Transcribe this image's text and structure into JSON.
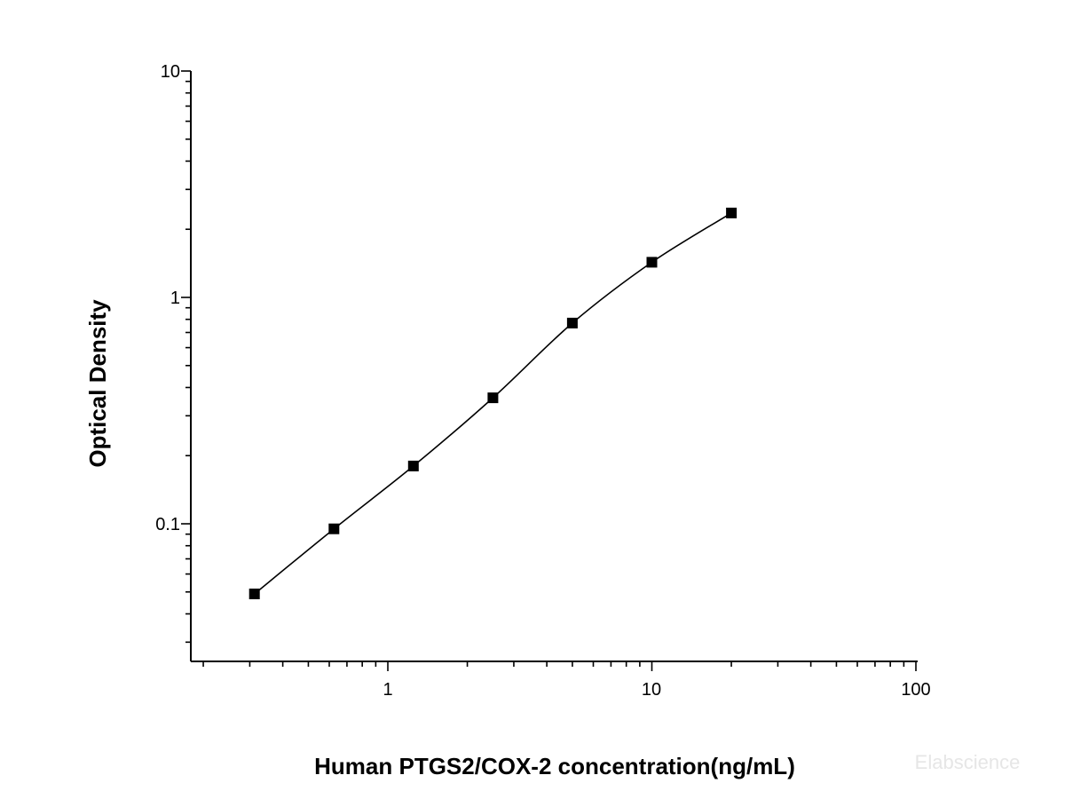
{
  "chart_data": {
    "type": "scatter",
    "xlabel": "Human PTGS2/COX-2 concentration(ng/mL)",
    "ylabel": "Optical Density",
    "x_scale": "log",
    "y_scale": "log",
    "xlim": [
      0.2,
      100
    ],
    "ylim": [
      0.03,
      10
    ],
    "x_ticks": [
      "1",
      "10",
      "100"
    ],
    "y_ticks": [
      "0.1",
      "1",
      "10"
    ],
    "grid": false,
    "series": [
      {
        "markers": "filled-square",
        "fit_line": true,
        "x": [
          0.3125,
          0.625,
          1.25,
          2.5,
          5,
          10,
          20
        ],
        "y": [
          0.049,
          0.095,
          0.18,
          0.36,
          0.77,
          1.43,
          2.36
        ]
      }
    ],
    "watermark": "Elabscience"
  }
}
